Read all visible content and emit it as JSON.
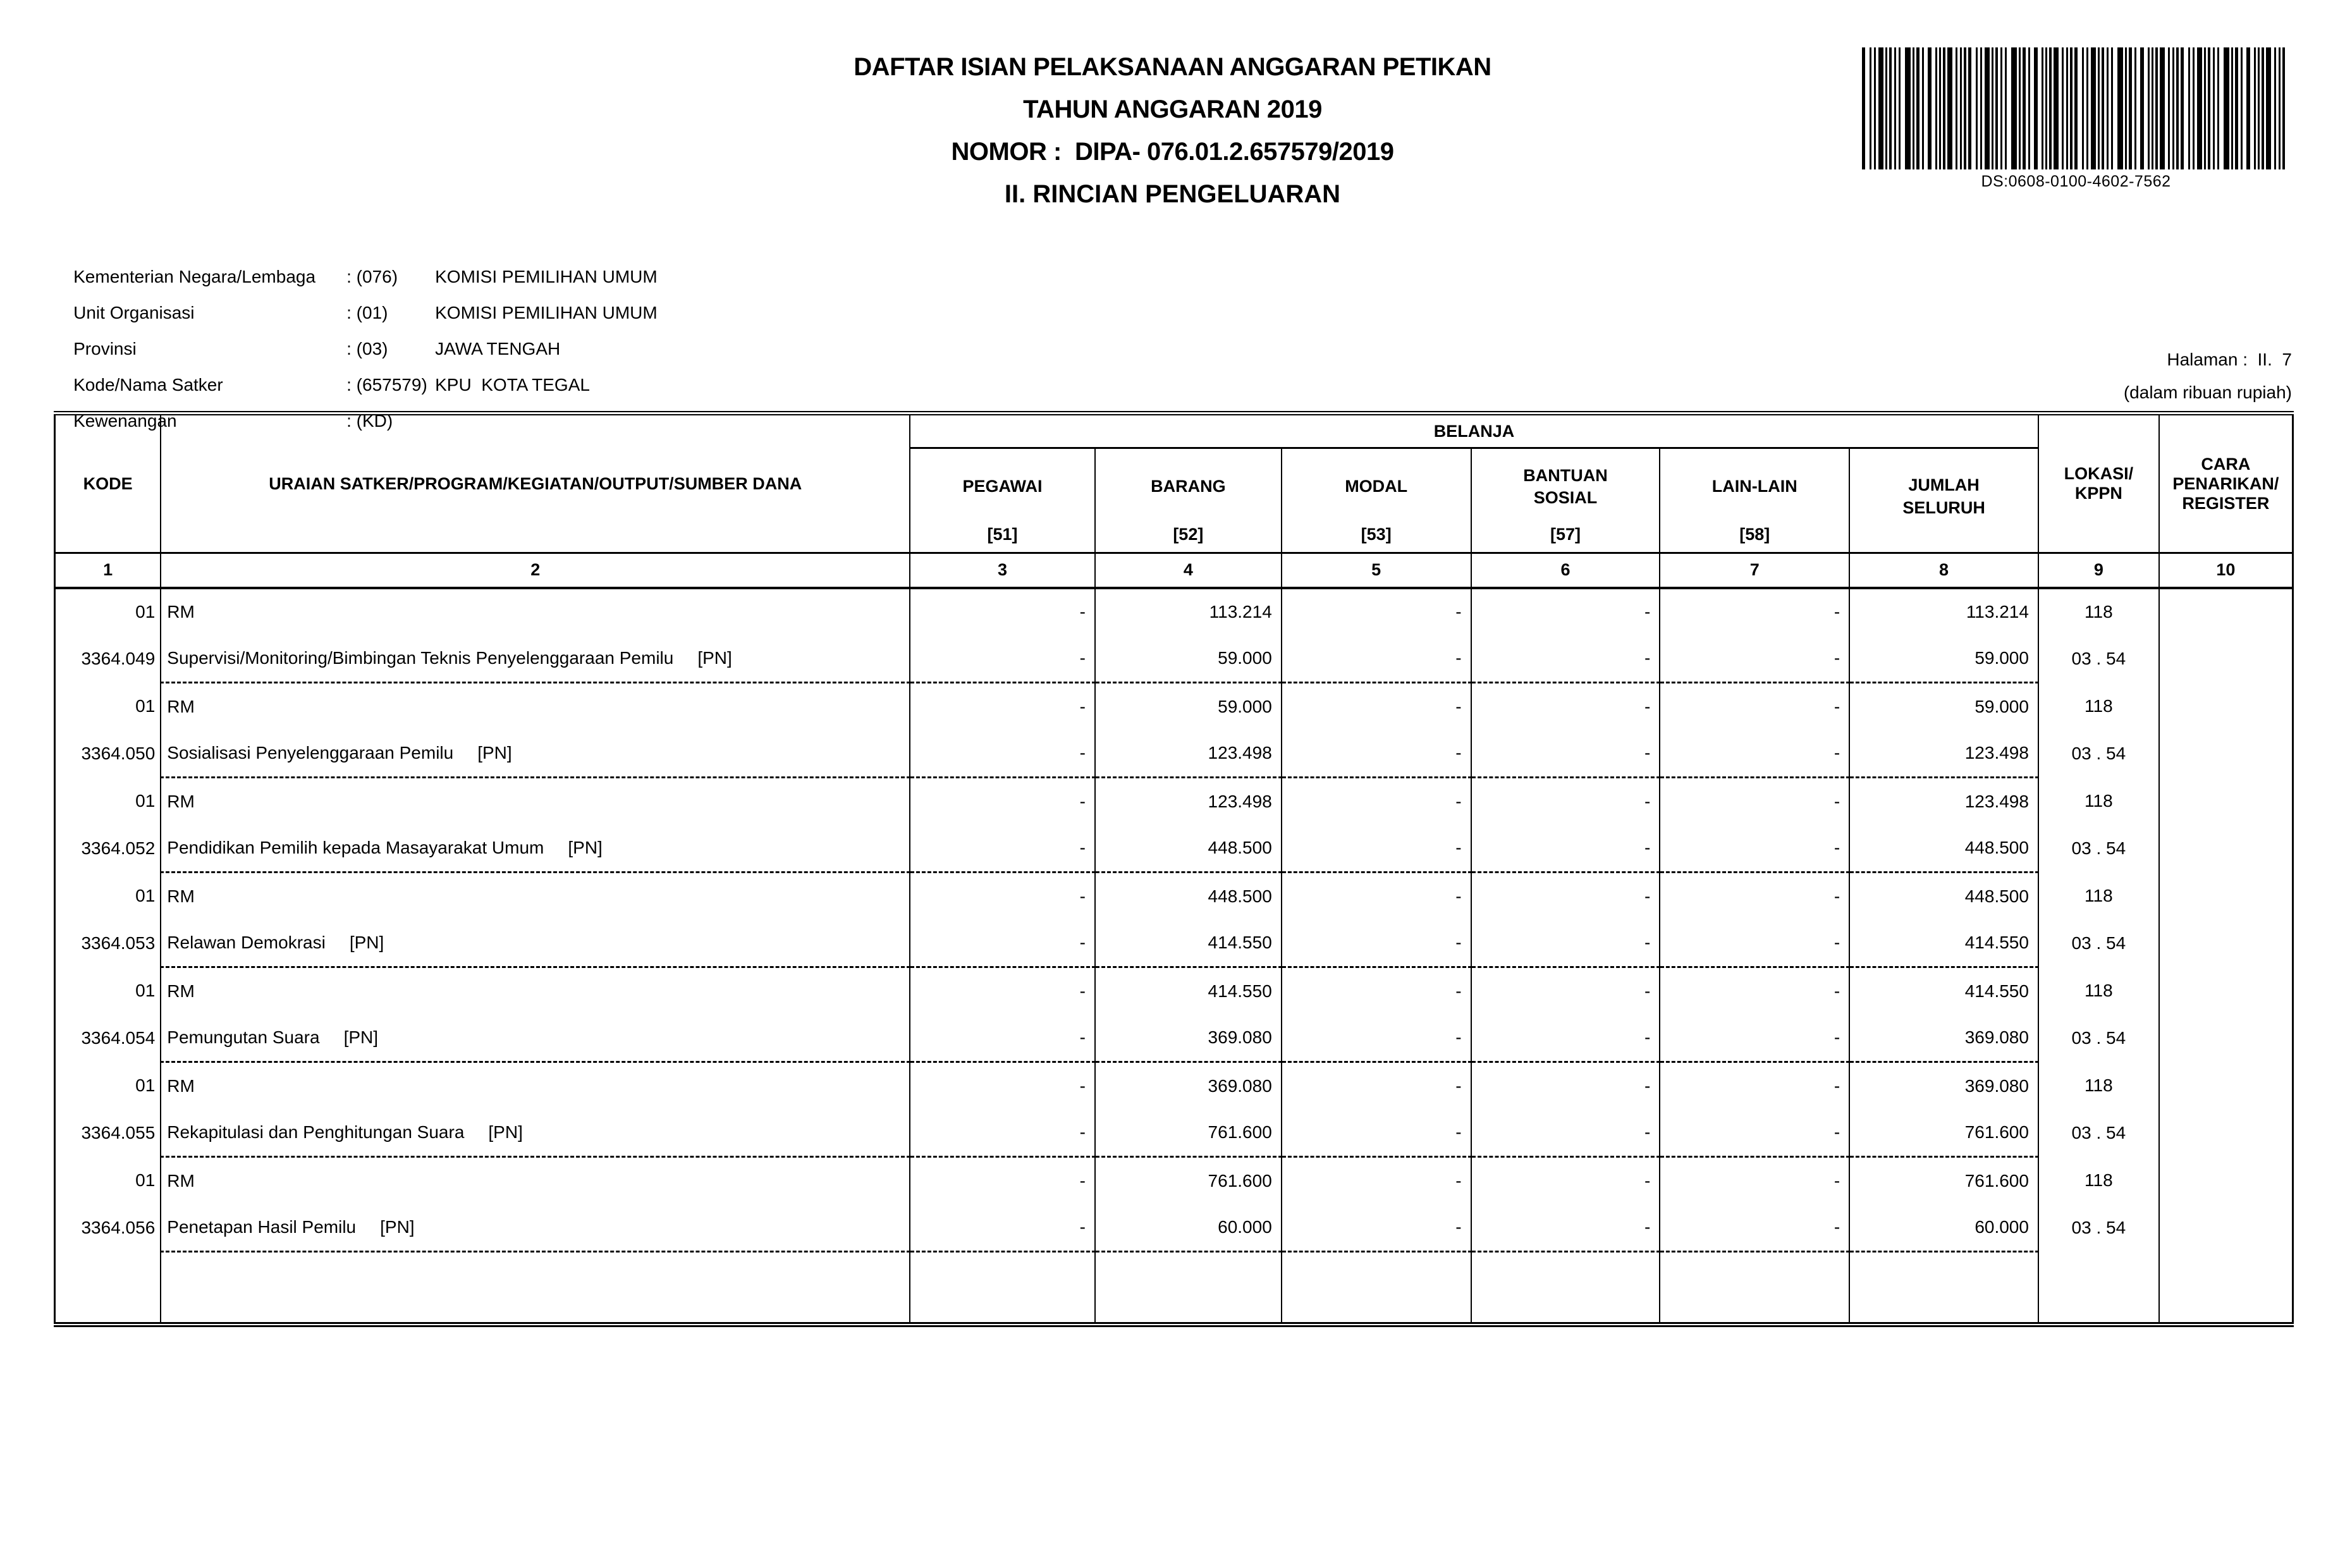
{
  "header": {
    "title": "DAFTAR ISIAN PELAKSANAAN ANGGARAN PETIKAN",
    "subtitle": "TAHUN ANGGARAN 2019",
    "nomor": "NOMOR :  DIPA- 076.01.2.657579/2019",
    "section": "II. RINCIAN PENGELUARAN",
    "barcode_label": "DS:0608-0100-4602-7562",
    "halaman": "Halaman :  II.  7",
    "unit_note": "(dalam ribuan rupiah)"
  },
  "metadata": {
    "rows": [
      {
        "label": "Kementerian Negara/Lembaga",
        "code": ": (076)",
        "value": "KOMISI PEMILIHAN UMUM"
      },
      {
        "label": "Unit Organisasi",
        "code": ": (01)",
        "value": "KOMISI PEMILIHAN UMUM"
      },
      {
        "label": "Provinsi",
        "code": ": (03)",
        "value": "JAWA TENGAH"
      },
      {
        "label": "Kode/Nama Satker",
        "code": ": (657579)",
        "value": "KPU  KOTA TEGAL"
      },
      {
        "label": "Kewenangan",
        "code": ": (KD)",
        "value": ""
      }
    ]
  },
  "table": {
    "belanja_group": "BELANJA",
    "headers": {
      "kode": "KODE",
      "uraian": "URAIAN SATKER/PROGRAM/KEGIATAN/OUTPUT/SUMBER DANA",
      "pegawai": {
        "title": "PEGAWAI",
        "code": "[51]"
      },
      "barang": {
        "title": "BARANG",
        "code": "[52]"
      },
      "modal": {
        "title": "MODAL",
        "code": "[53]"
      },
      "bansos": {
        "title": "BANTUAN\nSOSIAL",
        "code": "[57]"
      },
      "lain": {
        "title": "LAIN-LAIN",
        "code": "[58]"
      },
      "jumlah": {
        "title": "JUMLAH\nSELURUH",
        "code": ""
      },
      "lokasi": "LOKASI/\nKPPN",
      "cara": "CARA\nPENARIKAN/\nREGISTER"
    },
    "col_numbers": [
      "1",
      "2",
      "3",
      "4",
      "5",
      "6",
      "7",
      "8",
      "9",
      "10"
    ],
    "rows": [
      {
        "kode": "01",
        "uraian": "RM",
        "tag": "",
        "pegawai": "-",
        "barang": "113.214",
        "modal": "-",
        "bansos": "-",
        "lain": "-",
        "jumlah": "113.214",
        "lokasi": "118",
        "cara": ""
      },
      {
        "kode": "3364.049",
        "uraian": "Supervisi/Monitoring/Bimbingan Teknis Penyelenggaraan Pemilu",
        "tag": "[PN]",
        "pegawai": "-",
        "barang": "59.000",
        "modal": "-",
        "bansos": "-",
        "lain": "-",
        "jumlah": "59.000",
        "lokasi": "03 . 54",
        "cara": ""
      },
      {
        "kode": "01",
        "uraian": "RM",
        "tag": "",
        "pegawai": "-",
        "barang": "59.000",
        "modal": "-",
        "bansos": "-",
        "lain": "-",
        "jumlah": "59.000",
        "lokasi": "118",
        "cara": ""
      },
      {
        "kode": "3364.050",
        "uraian": "Sosialisasi Penyelenggaraan Pemilu",
        "tag": "[PN]",
        "pegawai": "-",
        "barang": "123.498",
        "modal": "-",
        "bansos": "-",
        "lain": "-",
        "jumlah": "123.498",
        "lokasi": "03 . 54",
        "cara": ""
      },
      {
        "kode": "01",
        "uraian": "RM",
        "tag": "",
        "pegawai": "-",
        "barang": "123.498",
        "modal": "-",
        "bansos": "-",
        "lain": "-",
        "jumlah": "123.498",
        "lokasi": "118",
        "cara": ""
      },
      {
        "kode": "3364.052",
        "uraian": "Pendidikan Pemilih kepada Masayarakat Umum",
        "tag": "[PN]",
        "pegawai": "-",
        "barang": "448.500",
        "modal": "-",
        "bansos": "-",
        "lain": "-",
        "jumlah": "448.500",
        "lokasi": "03 . 54",
        "cara": ""
      },
      {
        "kode": "01",
        "uraian": "RM",
        "tag": "",
        "pegawai": "-",
        "barang": "448.500",
        "modal": "-",
        "bansos": "-",
        "lain": "-",
        "jumlah": "448.500",
        "lokasi": "118",
        "cara": ""
      },
      {
        "kode": "3364.053",
        "uraian": "Relawan Demokrasi",
        "tag": "[PN]",
        "pegawai": "-",
        "barang": "414.550",
        "modal": "-",
        "bansos": "-",
        "lain": "-",
        "jumlah": "414.550",
        "lokasi": "03 . 54",
        "cara": ""
      },
      {
        "kode": "01",
        "uraian": "RM",
        "tag": "",
        "pegawai": "-",
        "barang": "414.550",
        "modal": "-",
        "bansos": "-",
        "lain": "-",
        "jumlah": "414.550",
        "lokasi": "118",
        "cara": ""
      },
      {
        "kode": "3364.054",
        "uraian": "Pemungutan Suara",
        "tag": "[PN]",
        "pegawai": "-",
        "barang": "369.080",
        "modal": "-",
        "bansos": "-",
        "lain": "-",
        "jumlah": "369.080",
        "lokasi": "03 . 54",
        "cara": ""
      },
      {
        "kode": "01",
        "uraian": "RM",
        "tag": "",
        "pegawai": "-",
        "barang": "369.080",
        "modal": "-",
        "bansos": "-",
        "lain": "-",
        "jumlah": "369.080",
        "lokasi": "118",
        "cara": ""
      },
      {
        "kode": "3364.055",
        "uraian": "Rekapitulasi dan Penghitungan Suara",
        "tag": "[PN]",
        "pegawai": "-",
        "barang": "761.600",
        "modal": "-",
        "bansos": "-",
        "lain": "-",
        "jumlah": "761.600",
        "lokasi": "03 . 54",
        "cara": ""
      },
      {
        "kode": "01",
        "uraian": "RM",
        "tag": "",
        "pegawai": "-",
        "barang": "761.600",
        "modal": "-",
        "bansos": "-",
        "lain": "-",
        "jumlah": "761.600",
        "lokasi": "118",
        "cara": ""
      },
      {
        "kode": "3364.056",
        "uraian": "Penetapan Hasil Pemilu",
        "tag": "[PN]",
        "pegawai": "-",
        "barang": "60.000",
        "modal": "-",
        "bansos": "-",
        "lain": "-",
        "jumlah": "60.000",
        "lokasi": "03 . 54",
        "cara": ""
      }
    ]
  }
}
